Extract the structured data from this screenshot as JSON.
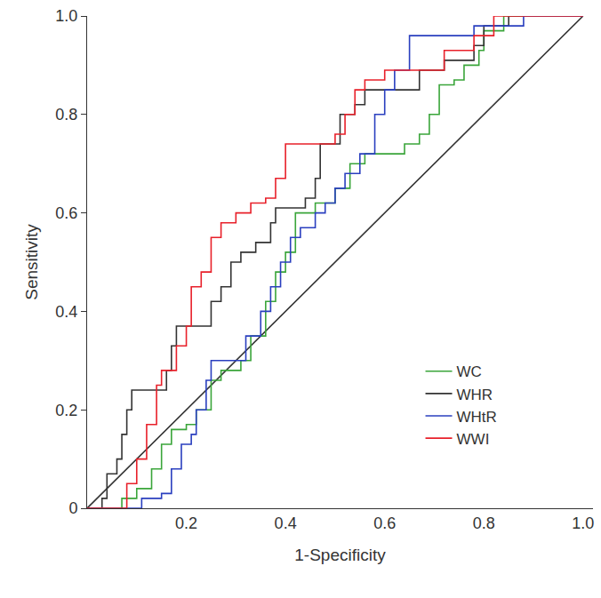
{
  "chart_data": {
    "type": "line",
    "xlabel": "1-Specificity",
    "ylabel": "Sensitivity",
    "xlim": [
      0,
      1.02
    ],
    "ylim": [
      0,
      1
    ],
    "xticks": [
      0.2,
      0.4,
      0.6,
      0.8,
      {
        "value": 1,
        "label": "1.0"
      }
    ],
    "yticks": [
      0,
      0.2,
      0.4,
      0.6,
      0.8,
      {
        "value": 1,
        "label": "1.0"
      }
    ],
    "grid": false,
    "legend": "lower right",
    "series": [
      {
        "color": "#333333",
        "line_style": "solid",
        "x": [
          0,
          1
        ],
        "values": [
          0,
          1
        ]
      },
      {
        "name": "WC",
        "color": "#3aa53a",
        "line_style": "step",
        "x": [
          0,
          0.05,
          0.07,
          0.1,
          0.13,
          0.15,
          0.17,
          0.2,
          0.22,
          0.25,
          0.27,
          0.31,
          0.33,
          0.36,
          0.38,
          0.4,
          0.42,
          0.46,
          0.5,
          0.53,
          0.56,
          0.6,
          0.64,
          0.67,
          0.69,
          0.71,
          0.74,
          0.76,
          0.79,
          0.8,
          0.84,
          1
        ],
        "values": [
          0,
          0,
          0.02,
          0.04,
          0.08,
          0.13,
          0.16,
          0.17,
          0.2,
          0.26,
          0.28,
          0.3,
          0.35,
          0.42,
          0.48,
          0.52,
          0.6,
          0.62,
          0.65,
          0.7,
          0.72,
          0.72,
          0.74,
          0.76,
          0.8,
          0.86,
          0.87,
          0.9,
          0.93,
          0.97,
          1,
          1
        ]
      },
      {
        "name": "WHR",
        "color": "#333333",
        "line_style": "step",
        "x": [
          0,
          0.03,
          0.04,
          0.06,
          0.07,
          0.08,
          0.09,
          0.14,
          0.16,
          0.17,
          0.18,
          0.24,
          0.25,
          0.27,
          0.29,
          0.31,
          0.34,
          0.37,
          0.38,
          0.42,
          0.44,
          0.46,
          0.47,
          0.5,
          0.51,
          0.54,
          0.56,
          0.62,
          0.67,
          0.72,
          0.78,
          0.8,
          0.85,
          1
        ],
        "values": [
          0,
          0.02,
          0.07,
          0.1,
          0.15,
          0.2,
          0.24,
          0.24,
          0.28,
          0.33,
          0.37,
          0.37,
          0.42,
          0.45,
          0.5,
          0.52,
          0.54,
          0.58,
          0.61,
          0.61,
          0.63,
          0.67,
          0.74,
          0.74,
          0.8,
          0.82,
          0.85,
          0.85,
          0.89,
          0.91,
          0.94,
          0.98,
          1,
          1
        ]
      },
      {
        "name": "WHtR",
        "color": "#2a3fbf",
        "line_style": "step",
        "x": [
          0,
          0.1,
          0.11,
          0.15,
          0.17,
          0.19,
          0.21,
          0.22,
          0.24,
          0.25,
          0.3,
          0.32,
          0.35,
          0.37,
          0.39,
          0.41,
          0.43,
          0.46,
          0.48,
          0.5,
          0.52,
          0.55,
          0.58,
          0.6,
          0.62,
          0.65,
          0.7,
          0.78,
          0.88,
          1
        ],
        "values": [
          0,
          0,
          0.02,
          0.03,
          0.08,
          0.13,
          0.15,
          0.2,
          0.26,
          0.3,
          0.3,
          0.35,
          0.4,
          0.45,
          0.5,
          0.55,
          0.57,
          0.6,
          0.62,
          0.65,
          0.68,
          0.72,
          0.8,
          0.85,
          0.89,
          0.96,
          0.96,
          0.98,
          1,
          1
        ]
      },
      {
        "name": "WWI",
        "color": "#e8202a",
        "line_style": "step",
        "x": [
          0,
          0.06,
          0.08,
          0.1,
          0.12,
          0.14,
          0.15,
          0.18,
          0.2,
          0.21,
          0.23,
          0.25,
          0.27,
          0.3,
          0.33,
          0.36,
          0.38,
          0.4,
          0.45,
          0.5,
          0.52,
          0.54,
          0.56,
          0.6,
          0.68,
          0.72,
          0.78,
          0.82,
          1
        ],
        "values": [
          0,
          0,
          0.05,
          0.1,
          0.17,
          0.25,
          0.28,
          0.33,
          0.37,
          0.45,
          0.48,
          0.55,
          0.58,
          0.6,
          0.62,
          0.63,
          0.67,
          0.74,
          0.74,
          0.76,
          0.8,
          0.85,
          0.87,
          0.89,
          0.89,
          0.93,
          0.96,
          1,
          1
        ]
      }
    ]
  }
}
